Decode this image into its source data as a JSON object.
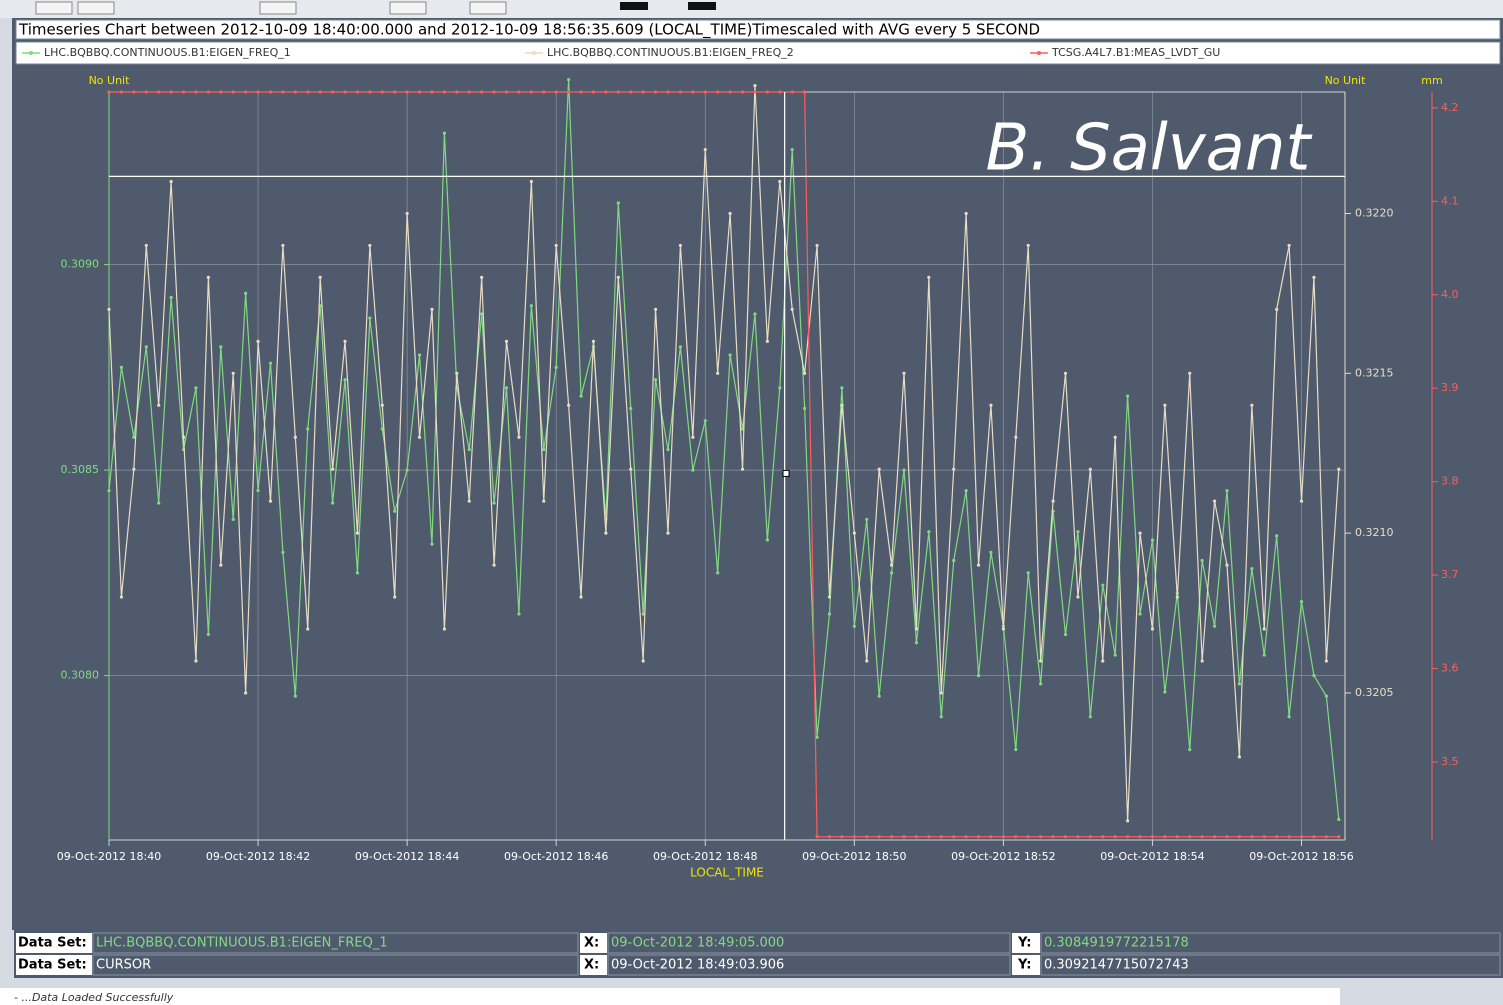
{
  "chart_data": {
    "type": "line",
    "title": "Timeseries Chart between 2012-10-09 18:40:00.000 and 2012-10-09 18:56:35.609 (LOCAL_TIME)Timescaled with AVG every 5 SECOND",
    "annotation": "B. Salvant",
    "x_label": "LOCAL_TIME",
    "y_label": "No Unit",
    "y2_label": "No Unit",
    "y3_label": "mm",
    "grid": true,
    "x": [
      "18:40:00",
      "18:40:10",
      "18:40:20",
      "18:40:30",
      "18:40:40",
      "18:40:50",
      "18:41:00",
      "18:41:10",
      "18:41:20",
      "18:41:30",
      "18:41:40",
      "18:41:50",
      "18:42:00",
      "18:42:10",
      "18:42:20",
      "18:42:30",
      "18:42:40",
      "18:42:50",
      "18:43:00",
      "18:43:10",
      "18:43:20",
      "18:43:30",
      "18:43:40",
      "18:43:50",
      "18:44:00",
      "18:44:10",
      "18:44:20",
      "18:44:30",
      "18:44:40",
      "18:44:50",
      "18:45:00",
      "18:45:10",
      "18:45:20",
      "18:45:30",
      "18:45:40",
      "18:45:50",
      "18:46:00",
      "18:46:10",
      "18:46:20",
      "18:46:30",
      "18:46:40",
      "18:46:50",
      "18:47:00",
      "18:47:10",
      "18:47:20",
      "18:47:30",
      "18:47:40",
      "18:47:50",
      "18:48:00",
      "18:48:10",
      "18:48:20",
      "18:48:30",
      "18:48:40",
      "18:48:50",
      "18:49:00",
      "18:49:10",
      "18:49:20",
      "18:49:30",
      "18:49:40",
      "18:49:50",
      "18:50:00",
      "18:50:10",
      "18:50:20",
      "18:50:30",
      "18:50:40",
      "18:50:50",
      "18:51:00",
      "18:51:10",
      "18:51:20",
      "18:51:30",
      "18:51:40",
      "18:51:50",
      "18:52:00",
      "18:52:10",
      "18:52:20",
      "18:52:30",
      "18:52:40",
      "18:52:50",
      "18:53:00",
      "18:53:10",
      "18:53:20",
      "18:53:30",
      "18:53:40",
      "18:53:50",
      "18:54:00",
      "18:54:10",
      "18:54:20",
      "18:54:30",
      "18:54:40",
      "18:54:50",
      "18:55:00",
      "18:55:10",
      "18:55:20",
      "18:55:30",
      "18:55:40",
      "18:55:50",
      "18:56:00",
      "18:56:10",
      "18:56:20",
      "18:56:30"
    ],
    "xlim": [
      "18:40:00",
      "18:56:35"
    ],
    "xticks": [
      {
        "value": "18:40:00",
        "label": "09-Oct-2012 18:40"
      },
      {
        "value": "18:42:00",
        "label": "09-Oct-2012 18:42"
      },
      {
        "value": "18:44:00",
        "label": "09-Oct-2012 18:44"
      },
      {
        "value": "18:46:00",
        "label": "09-Oct-2012 18:46"
      },
      {
        "value": "18:48:00",
        "label": "09-Oct-2012 18:48"
      },
      {
        "value": "18:50:00",
        "label": "09-Oct-2012 18:50"
      },
      {
        "value": "18:52:00",
        "label": "09-Oct-2012 18:52"
      },
      {
        "value": "18:54:00",
        "label": "09-Oct-2012 18:54"
      },
      {
        "value": "18:56:00",
        "label": "09-Oct-2012 18:56"
      }
    ],
    "ylim": [
      0.3076,
      0.30942
    ],
    "yticks": [
      {
        "value": 0.308,
        "label": "0.3080"
      },
      0.3085,
      {
        "value": 0.309,
        "label": "0.3090"
      }
    ],
    "y2lim": [
      0.32004,
      0.32238
    ],
    "y2ticks": [
      0.3205,
      {
        "value": 0.321,
        "label": "0.3210"
      },
      0.3215,
      {
        "value": 0.322,
        "label": "0.3220"
      }
    ],
    "y3lim": [
      3.4165,
      4.217
    ],
    "y3ticks": [
      3.5,
      3.6,
      3.7,
      3.8,
      3.9,
      {
        "value": 4,
        "label": "4.0"
      },
      4.1,
      4.2
    ],
    "series": [
      {
        "name": "LHC.BQBBQ.CONTINUOUS.B1:EIGEN_FREQ_1",
        "color": "#82d982",
        "axis": "y",
        "values": [
          0.30845,
          0.30875,
          0.30858,
          0.3088,
          0.30842,
          0.30892,
          0.30855,
          0.3087,
          0.3081,
          0.3088,
          0.30838,
          0.30893,
          0.30845,
          0.30876,
          0.3083,
          0.30795,
          0.3086,
          0.3089,
          0.30842,
          0.30872,
          0.30825,
          0.30887,
          0.3086,
          0.3084,
          0.3085,
          0.30878,
          0.30832,
          0.30932,
          0.3087,
          0.30855,
          0.30888,
          0.30842,
          0.3087,
          0.30815,
          0.3089,
          0.30855,
          0.30875,
          0.30945,
          0.30868,
          0.3088,
          0.30838,
          0.30915,
          0.30865,
          0.30815,
          0.30872,
          0.30855,
          0.3088,
          0.3085,
          0.30862,
          0.30825,
          0.30878,
          0.3086,
          0.30888,
          0.30833,
          0.3087,
          0.30928,
          0.30865,
          0.30785,
          0.30815,
          0.3087,
          0.30812,
          0.30838,
          0.30795,
          0.30825,
          0.3085,
          0.30808,
          0.30835,
          0.3079,
          0.30828,
          0.30845,
          0.308,
          0.3083,
          0.30812,
          0.30782,
          0.30825,
          0.30798,
          0.3084,
          0.3081,
          0.30835,
          0.3079,
          0.30822,
          0.30805,
          0.30868,
          0.30815,
          0.30833,
          0.30796,
          0.3082,
          0.30782,
          0.30828,
          0.30812,
          0.30845,
          0.30798,
          0.30826,
          0.30805,
          0.30834,
          0.3079,
          0.30818,
          0.308,
          0.30795,
          0.30765
        ]
      },
      {
        "name": "LHC.BQBBQ.CONTINUOUS.B1:EIGEN_FREQ_2",
        "color": "#e8dcc4",
        "axis": "y2",
        "values": [
          0.3217,
          0.3208,
          0.3212,
          0.3219,
          0.3214,
          0.3221,
          0.3213,
          0.3206,
          0.3218,
          0.3209,
          0.3215,
          0.3205,
          0.3216,
          0.3211,
          0.3219,
          0.3213,
          0.3207,
          0.3218,
          0.3212,
          0.3216,
          0.321,
          0.3219,
          0.3214,
          0.3208,
          0.322,
          0.3213,
          0.3217,
          0.3207,
          0.3215,
          0.3211,
          0.3218,
          0.3209,
          0.3216,
          0.3213,
          0.3221,
          0.3211,
          0.3219,
          0.3214,
          0.3208,
          0.3216,
          0.321,
          0.3218,
          0.3212,
          0.3206,
          0.3217,
          0.321,
          0.3219,
          0.3213,
          0.3222,
          0.3215,
          0.322,
          0.3212,
          0.3224,
          0.3216,
          0.3221,
          0.3217,
          0.3215,
          0.3219,
          0.3208,
          0.3214,
          0.321,
          0.3206,
          0.3212,
          0.3209,
          0.3215,
          0.3207,
          0.3218,
          0.3205,
          0.3212,
          0.322,
          0.3209,
          0.3214,
          0.3207,
          0.3213,
          0.3219,
          0.3206,
          0.3211,
          0.3215,
          0.3208,
          0.3212,
          0.3206,
          0.3213,
          0.3201,
          0.321,
          0.3207,
          0.3214,
          0.3208,
          0.3215,
          0.3206,
          0.3211,
          0.3209,
          0.3203,
          0.3214,
          0.3207,
          0.3217,
          0.3219,
          0.3211,
          0.3218,
          0.3206,
          0.3212
        ]
      },
      {
        "name": "TCSG.A4L7.B1:MEAS_LVDT_GU",
        "color": "#ff5c5c",
        "axis": "y3",
        "values": [
          4.217,
          4.217,
          4.217,
          4.217,
          4.217,
          4.217,
          4.217,
          4.217,
          4.217,
          4.217,
          4.217,
          4.217,
          4.217,
          4.217,
          4.217,
          4.217,
          4.217,
          4.217,
          4.217,
          4.217,
          4.217,
          4.217,
          4.217,
          4.217,
          4.217,
          4.217,
          4.217,
          4.217,
          4.217,
          4.217,
          4.217,
          4.217,
          4.217,
          4.217,
          4.217,
          4.217,
          4.217,
          4.217,
          4.217,
          4.217,
          4.217,
          4.217,
          4.217,
          4.217,
          4.217,
          4.217,
          4.217,
          4.217,
          4.217,
          4.217,
          4.217,
          4.217,
          4.217,
          4.217,
          4.217,
          4.217,
          4.217,
          3.42,
          3.42,
          3.42,
          3.42,
          3.42,
          3.42,
          3.42,
          3.42,
          3.42,
          3.42,
          3.42,
          3.42,
          3.42,
          3.42,
          3.42,
          3.42,
          3.42,
          3.42,
          3.42,
          3.42,
          3.42,
          3.42,
          3.42,
          3.42,
          3.42,
          3.42,
          3.42,
          3.42,
          3.42,
          3.42,
          3.42,
          3.42,
          3.42,
          3.42,
          3.42,
          3.42,
          3.42,
          3.42,
          3.42,
          3.42,
          3.42,
          3.42,
          3.42
        ]
      }
    ]
  },
  "cursor_panel": {
    "rows": [
      {
        "label": "Data Set:",
        "dataset": "LHC.BQBBQ.CONTINUOUS.B1:EIGEN_FREQ_1",
        "x_label": "X:",
        "x": "09-Oct-2012 18:49:05.000",
        "y_label": "Y:",
        "y": 0.3084919772215178
      },
      {
        "label": "Data Set:",
        "dataset": "CURSOR",
        "x_label": "X:",
        "x": "09-Oct-2012 18:49:03.906",
        "y_label": "Y:",
        "y": 0.3092147715072743
      }
    ]
  },
  "status": "- ...Data Loaded Successfully"
}
